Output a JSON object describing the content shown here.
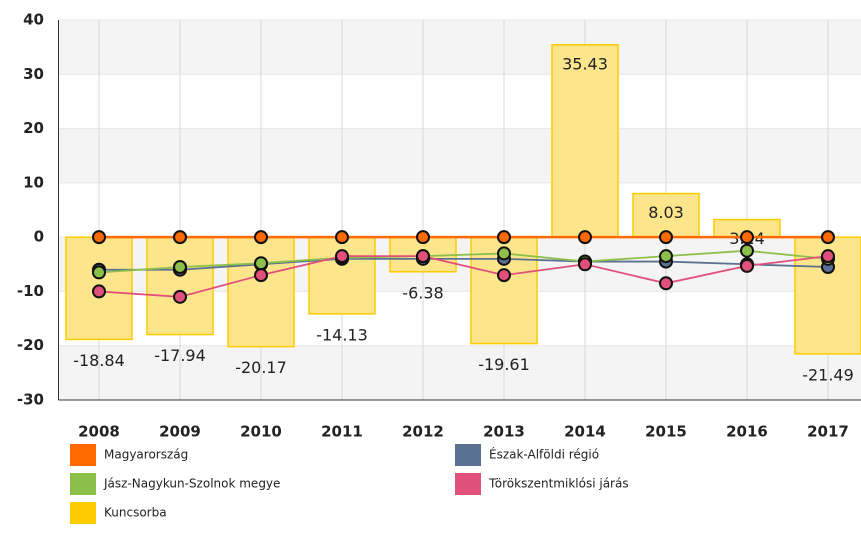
{
  "chart_data": {
    "type": "combo",
    "categories": [
      "2008",
      "2009",
      "2010",
      "2011",
      "2012",
      "2013",
      "2014",
      "2015",
      "2016",
      "2017"
    ],
    "ylim": [
      -30,
      40
    ],
    "yticks": [
      -30,
      -20,
      -10,
      0,
      10,
      20,
      30,
      40
    ],
    "grid": true,
    "series": [
      {
        "name": "Magyarország",
        "type": "line",
        "color": "#ff6a00",
        "values": [
          0,
          0,
          0,
          0,
          0,
          0,
          0,
          0,
          0,
          0
        ]
      },
      {
        "name": "Észak-Alföldi régió",
        "type": "line",
        "color": "#5b7193",
        "values": [
          -6,
          -6,
          -5,
          -4,
          -4,
          -4,
          -4.5,
          -4.5,
          -5,
          -5.5
        ]
      },
      {
        "name": "Jász-Nagykun-Szolnok megye",
        "type": "line",
        "color": "#8dc04a",
        "values": [
          -6.5,
          -5.5,
          -4.8,
          -3.8,
          -3.5,
          -3,
          -4.5,
          -3.5,
          -2.5,
          -4
        ]
      },
      {
        "name": "Törökszentmiklósi járás",
        "type": "line",
        "color": "#e0507a",
        "values": [
          -10,
          -11,
          -7,
          -3.5,
          -3.5,
          -7,
          -5,
          -8.5,
          -5.3,
          -3.5
        ]
      },
      {
        "name": "Kuncsorba",
        "type": "bar",
        "color": "#ffcc00",
        "values": [
          -18.84,
          -17.94,
          -20.17,
          -14.13,
          -6.38,
          -19.61,
          35.43,
          8.03,
          3.24,
          -21.49
        ]
      }
    ]
  }
}
